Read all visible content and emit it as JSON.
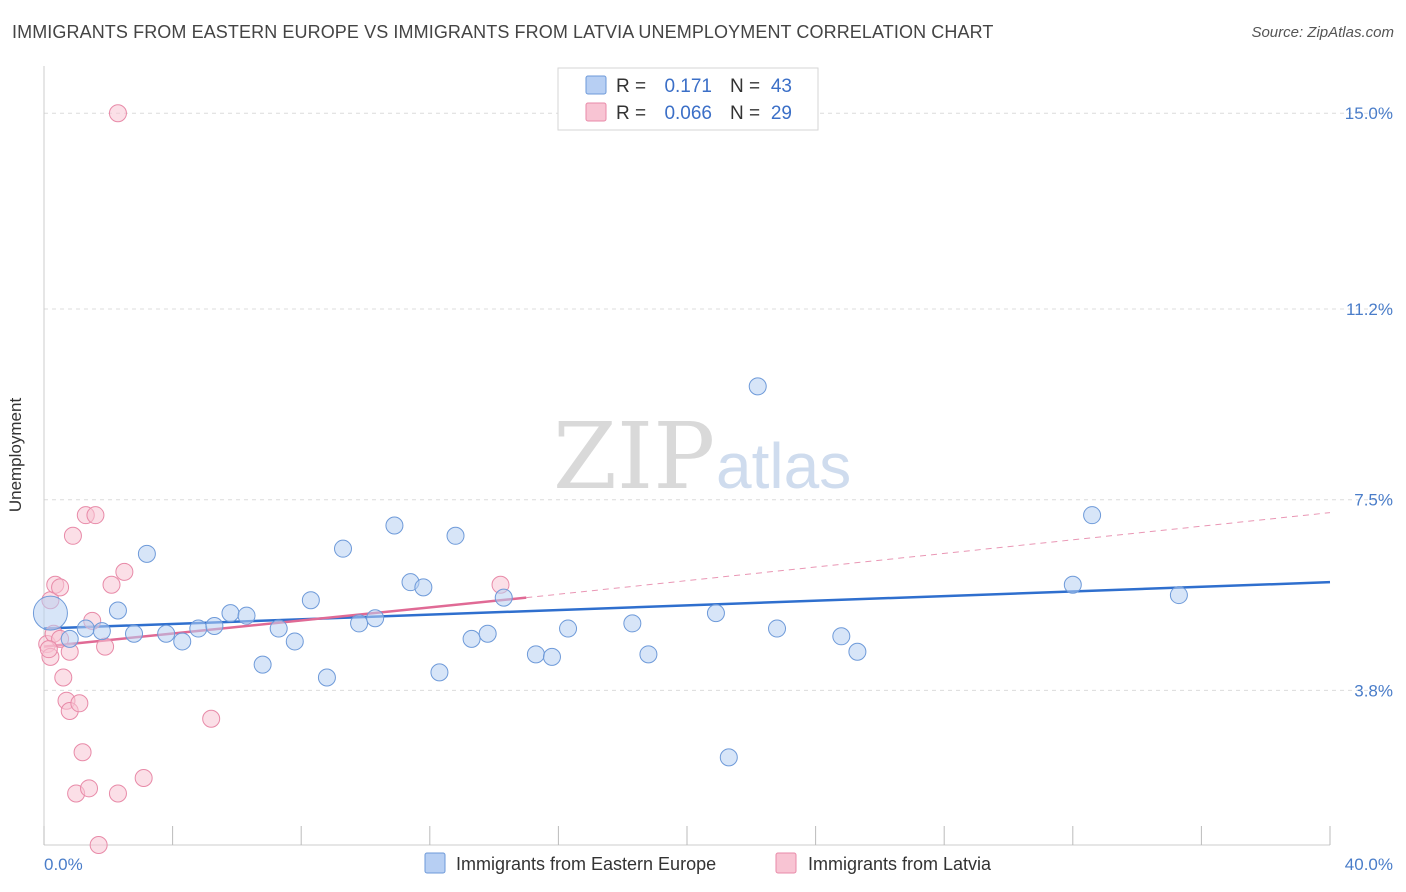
{
  "header": {
    "title": "IMMIGRANTS FROM EASTERN EUROPE VS IMMIGRANTS FROM LATVIA UNEMPLOYMENT CORRELATION CHART",
    "source": "Source: ZipAtlas.com"
  },
  "watermark": {
    "part1": "ZIP",
    "part2": "atlas"
  },
  "legend": {
    "r_label": "R =",
    "n_label": "N =",
    "series1": {
      "r": "0.171",
      "n": "43"
    },
    "series2": {
      "r": "0.066",
      "n": "29"
    }
  },
  "colors": {
    "series1_fill": "#b7cff3",
    "series1_stroke": "#6e9ad9",
    "series1_line": "#2f6fce",
    "series2_fill": "#f8c4d3",
    "series2_stroke": "#e88aa8",
    "series2_line": "#e06a95"
  },
  "chart_data": {
    "type": "scatter",
    "title": "IMMIGRANTS FROM EASTERN EUROPE VS IMMIGRANTS FROM LATVIA UNEMPLOYMENT CORRELATION CHART",
    "xlabel": "",
    "ylabel": "Unemployment",
    "xlim": [
      0,
      40
    ],
    "ylim": [
      0.8,
      15.8
    ],
    "x_tick_labels": [
      "0.0%",
      "40.0%"
    ],
    "y_ticks": [
      3.8,
      7.5,
      11.2,
      15.0
    ],
    "y_tick_labels": [
      "3.8%",
      "7.5%",
      "11.2%",
      "15.0%"
    ],
    "grid": true,
    "series": [
      {
        "name": "Immigrants from Eastern Europe",
        "r": 0.171,
        "n": 43,
        "trend": {
          "x": [
            0,
            40
          ],
          "y": [
            5.0,
            5.9
          ]
        },
        "points": [
          {
            "x": 0.2,
            "y": 5.3,
            "s": "big"
          },
          {
            "x": 0.8,
            "y": 4.8
          },
          {
            "x": 1.3,
            "y": 5.0
          },
          {
            "x": 1.8,
            "y": 4.95
          },
          {
            "x": 2.3,
            "y": 5.35
          },
          {
            "x": 2.8,
            "y": 4.9
          },
          {
            "x": 3.2,
            "y": 6.45
          },
          {
            "x": 3.8,
            "y": 4.9
          },
          {
            "x": 4.3,
            "y": 4.75
          },
          {
            "x": 4.8,
            "y": 5.0
          },
          {
            "x": 5.3,
            "y": 5.05
          },
          {
            "x": 5.8,
            "y": 5.3
          },
          {
            "x": 6.3,
            "y": 5.25
          },
          {
            "x": 6.8,
            "y": 4.3
          },
          {
            "x": 7.3,
            "y": 5.0
          },
          {
            "x": 7.8,
            "y": 4.75
          },
          {
            "x": 8.3,
            "y": 5.55
          },
          {
            "x": 8.8,
            "y": 4.05
          },
          {
            "x": 9.3,
            "y": 6.55
          },
          {
            "x": 9.8,
            "y": 5.1
          },
          {
            "x": 10.3,
            "y": 5.2
          },
          {
            "x": 10.9,
            "y": 7.0
          },
          {
            "x": 11.4,
            "y": 5.9
          },
          {
            "x": 11.8,
            "y": 5.8
          },
          {
            "x": 12.3,
            "y": 4.15
          },
          {
            "x": 12.8,
            "y": 6.8
          },
          {
            "x": 13.3,
            "y": 4.8
          },
          {
            "x": 13.8,
            "y": 4.9
          },
          {
            "x": 14.3,
            "y": 5.6
          },
          {
            "x": 15.3,
            "y": 4.5
          },
          {
            "x": 15.8,
            "y": 4.45
          },
          {
            "x": 16.3,
            "y": 5.0
          },
          {
            "x": 18.3,
            "y": 5.1
          },
          {
            "x": 18.8,
            "y": 4.5
          },
          {
            "x": 20.9,
            "y": 5.3
          },
          {
            "x": 21.3,
            "y": 2.5
          },
          {
            "x": 22.2,
            "y": 9.7
          },
          {
            "x": 22.8,
            "y": 5.0
          },
          {
            "x": 24.8,
            "y": 4.85
          },
          {
            "x": 25.3,
            "y": 4.55
          },
          {
            "x": 32.0,
            "y": 5.85
          },
          {
            "x": 32.6,
            "y": 7.2
          },
          {
            "x": 35.3,
            "y": 5.65
          }
        ]
      },
      {
        "name": "Immigrants from Latvia",
        "r": 0.066,
        "n": 29,
        "trend": {
          "x": [
            0,
            15
          ],
          "y": [
            4.65,
            5.6
          ],
          "dashed_x": [
            15,
            40
          ],
          "dashed_y": [
            5.6,
            7.25
          ]
        },
        "points": [
          {
            "x": 0.1,
            "y": 4.7
          },
          {
            "x": 0.2,
            "y": 5.55
          },
          {
            "x": 0.2,
            "y": 4.45
          },
          {
            "x": 0.3,
            "y": 4.9
          },
          {
            "x": 0.35,
            "y": 5.85
          },
          {
            "x": 0.5,
            "y": 5.8
          },
          {
            "x": 0.5,
            "y": 4.8
          },
          {
            "x": 0.6,
            "y": 4.05
          },
          {
            "x": 0.7,
            "y": 3.6
          },
          {
            "x": 0.8,
            "y": 4.55
          },
          {
            "x": 0.8,
            "y": 3.4
          },
          {
            "x": 0.9,
            "y": 6.8
          },
          {
            "x": 1.0,
            "y": 1.8
          },
          {
            "x": 1.1,
            "y": 3.55
          },
          {
            "x": 1.2,
            "y": 2.6
          },
          {
            "x": 1.3,
            "y": 7.2
          },
          {
            "x": 1.4,
            "y": 1.9
          },
          {
            "x": 1.5,
            "y": 5.15
          },
          {
            "x": 1.6,
            "y": 7.2
          },
          {
            "x": 1.7,
            "y": 0.8
          },
          {
            "x": 1.9,
            "y": 4.65
          },
          {
            "x": 2.1,
            "y": 5.85
          },
          {
            "x": 2.3,
            "y": 15.0
          },
          {
            "x": 2.3,
            "y": 1.8
          },
          {
            "x": 2.5,
            "y": 6.1
          },
          {
            "x": 3.1,
            "y": 2.1
          },
          {
            "x": 5.2,
            "y": 3.25
          },
          {
            "x": 14.2,
            "y": 5.85
          },
          {
            "x": 0.15,
            "y": 4.6
          }
        ]
      }
    ]
  },
  "bottom_legend": {
    "series1_label": "Immigrants from Eastern Europe",
    "series2_label": "Immigrants from Latvia"
  }
}
